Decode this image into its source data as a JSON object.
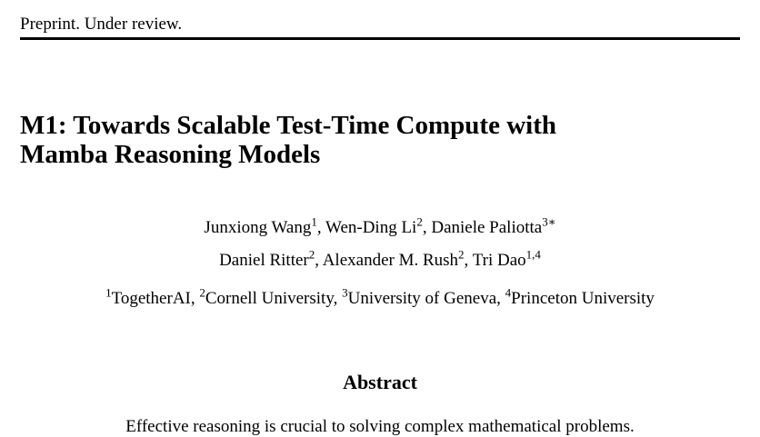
{
  "header": {
    "label": "Preprint. Under review."
  },
  "paper": {
    "title_line1": "M1: Towards Scalable Test-Time Compute with",
    "title_line2": "Mamba Reasoning Models"
  },
  "authors": [
    {
      "name": "Junxiong Wang",
      "sup": "1",
      "sep": ", "
    },
    {
      "name": "Wen-Ding Li",
      "sup": "2",
      "sep": ", "
    },
    {
      "name": "Daniele Paliotta",
      "sup": "3∗",
      "sep": ""
    },
    {
      "name": "Daniel Ritter",
      "sup": "2",
      "sep": ", "
    },
    {
      "name": "Alexander M. Rush",
      "sup": "2",
      "sep": ", "
    },
    {
      "name": "Tri Dao",
      "sup": "1,4",
      "sep": ""
    }
  ],
  "affiliations": [
    {
      "sup": "1",
      "name": "TogetherAI",
      "sep": ", "
    },
    {
      "sup": "2",
      "name": "Cornell University",
      "sep": ", "
    },
    {
      "sup": "3",
      "name": "University of Geneva",
      "sep": ", "
    },
    {
      "sup": "4",
      "name": "Princeton University",
      "sep": ""
    }
  ],
  "abstract": {
    "heading": "Abstract",
    "first_line": "Effective reasoning is crucial to solving complex mathematical problems."
  }
}
